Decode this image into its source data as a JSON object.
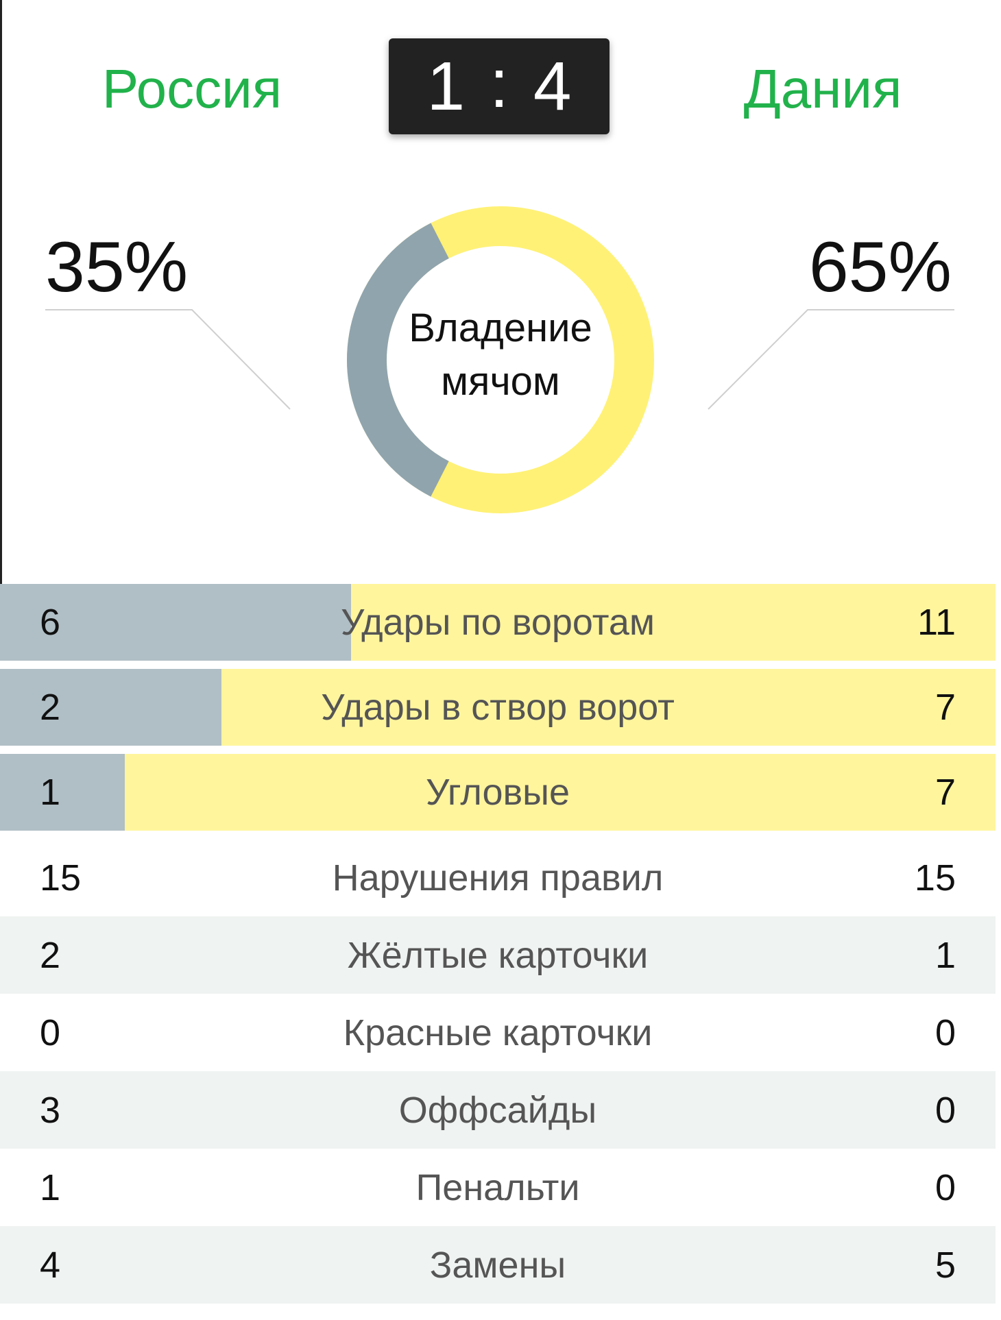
{
  "match": {
    "home_team": "Россия",
    "away_team": "Дания",
    "home_score": "1",
    "separator": ":",
    "away_score": "4"
  },
  "possession": {
    "home_pct": "35%",
    "away_pct": "65%",
    "home_value": 35,
    "away_value": 65,
    "label_line1": "Владение",
    "label_line2": "мячом",
    "home_color": "#90a4ae",
    "away_color": "#fff176"
  },
  "colors": {
    "team_name": "#21b24b",
    "bar_home": "#b0bec5",
    "bar_away": "#fff59d",
    "row_shade": "#eff3f1"
  },
  "stats": [
    {
      "label": "Удары по воротам",
      "home": "6",
      "away": "11",
      "bar": true
    },
    {
      "label": "Удары в створ ворот",
      "home": "2",
      "away": "7",
      "bar": true
    },
    {
      "label": "Угловые",
      "home": "1",
      "away": "7",
      "bar": true
    },
    {
      "label": "Нарушения правил",
      "home": "15",
      "away": "15",
      "bar": false
    },
    {
      "label": "Жёлтые карточки",
      "home": "2",
      "away": "1",
      "bar": false
    },
    {
      "label": "Красные карточки",
      "home": "0",
      "away": "0",
      "bar": false
    },
    {
      "label": "Оффсайды",
      "home": "3",
      "away": "0",
      "bar": false
    },
    {
      "label": "Пенальти",
      "home": "1",
      "away": "0",
      "bar": false
    },
    {
      "label": "Замены",
      "home": "4",
      "away": "5",
      "bar": false
    }
  ]
}
